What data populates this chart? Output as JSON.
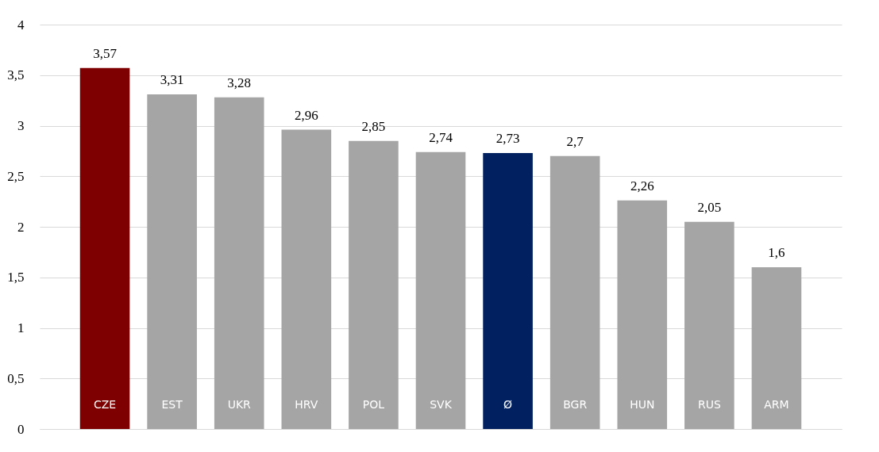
{
  "chart_data": {
    "type": "bar",
    "categories": [
      "CZE",
      "EST",
      "UKR",
      "HRV",
      "POL",
      "SVK",
      "Ø",
      "BGR",
      "HUN",
      "RUS",
      "ARM"
    ],
    "values": [
      3.57,
      3.31,
      3.28,
      2.96,
      2.85,
      2.74,
      2.73,
      2.7,
      2.26,
      2.05,
      1.6
    ],
    "colors": [
      "#7f0000",
      "#a5a5a5",
      "#a5a5a5",
      "#a5a5a5",
      "#a5a5a5",
      "#a5a5a5",
      "#002060",
      "#a5a5a5",
      "#a5a5a5",
      "#a5a5a5",
      "#a5a5a5"
    ],
    "value_labels": [
      "3,57",
      "3,31",
      "3,28",
      "2,96",
      "2,85",
      "2,74",
      "2,73",
      "2,7",
      "2,26",
      "2,05",
      "1,6"
    ],
    "ylim": [
      0,
      4
    ],
    "yticks": [
      0,
      {
        "value": 0.5,
        "label": "0,5"
      },
      1,
      {
        "value": 1.5,
        "label": "1,5"
      },
      2,
      {
        "value": 2.5,
        "label": "2,5"
      },
      3,
      {
        "value": 3.5,
        "label": "3,5"
      },
      4
    ],
    "grid": "y"
  }
}
